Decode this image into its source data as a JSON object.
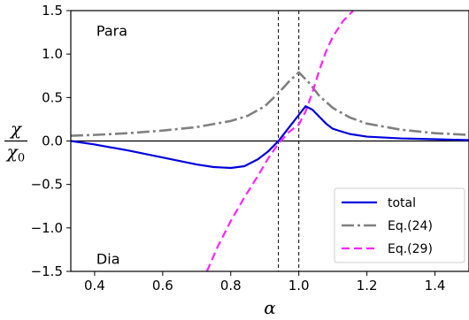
{
  "chart_data": {
    "type": "line",
    "title": "",
    "xlabel": "α",
    "ylabel": {
      "numerator": "χ",
      "denominator": "χ",
      "denominator_subscript": "0"
    },
    "xlim": [
      0.33,
      1.5
    ],
    "ylim": [
      -1.5,
      1.5
    ],
    "xticks": [
      0.4,
      0.6,
      0.8,
      1.0,
      1.2,
      1.4
    ],
    "xtick_labels": [
      "0.4",
      "0.6",
      "0.8",
      "1.0",
      "1.2",
      "1.4"
    ],
    "yticks": [
      -1.5,
      -1.0,
      -0.5,
      0.0,
      0.5,
      1.0,
      1.5
    ],
    "ytick_labels": [
      "−1.5",
      "−1.0",
      "−0.5",
      "0.0",
      "0.5",
      "1.0",
      "1.5"
    ],
    "grid": false,
    "legend_position": "bottom-right",
    "annotations": [
      {
        "text": "Para",
        "x": 0.4,
        "y": 1.27
      },
      {
        "text": "Dia",
        "x": 0.4,
        "y": -1.35
      }
    ],
    "hlines": [
      0.0
    ],
    "vlines": [
      0.94,
      1.0
    ],
    "series": [
      {
        "name": "total",
        "color": "#0000dd",
        "style": "solid",
        "x": [
          0.33,
          0.4,
          0.5,
          0.6,
          0.7,
          0.75,
          0.8,
          0.84,
          0.88,
          0.91,
          0.94,
          0.96,
          0.98,
          1.0,
          1.02,
          1.04,
          1.06,
          1.08,
          1.1,
          1.15,
          1.2,
          1.3,
          1.4,
          1.5
        ],
        "y": [
          0.0,
          -0.04,
          -0.11,
          -0.19,
          -0.27,
          -0.3,
          -0.31,
          -0.29,
          -0.21,
          -0.12,
          0.0,
          0.1,
          0.2,
          0.3,
          0.4,
          0.36,
          0.28,
          0.2,
          0.14,
          0.08,
          0.05,
          0.03,
          0.02,
          0.01
        ]
      },
      {
        "name": "Eq.(24)",
        "color": "#808080",
        "style": "dashdot",
        "x": [
          0.33,
          0.4,
          0.5,
          0.6,
          0.7,
          0.8,
          0.85,
          0.9,
          0.94,
          0.97,
          1.0,
          1.03,
          1.06,
          1.1,
          1.15,
          1.2,
          1.3,
          1.4,
          1.5
        ],
        "y": [
          0.06,
          0.07,
          0.09,
          0.12,
          0.16,
          0.23,
          0.29,
          0.4,
          0.55,
          0.68,
          0.79,
          0.67,
          0.52,
          0.38,
          0.27,
          0.2,
          0.13,
          0.09,
          0.07
        ]
      },
      {
        "name": "Eq.(29)",
        "color": "#ff22ff",
        "style": "dashed",
        "x": [
          0.73,
          0.76,
          0.8,
          0.84,
          0.88,
          0.91,
          0.94,
          0.97,
          1.0,
          1.02,
          1.04,
          1.06,
          1.08,
          1.1,
          1.13,
          1.16
        ],
        "y": [
          -1.5,
          -1.23,
          -0.92,
          -0.65,
          -0.4,
          -0.2,
          -0.03,
          0.1,
          0.19,
          0.34,
          0.56,
          0.81,
          1.03,
          1.2,
          1.38,
          1.5
        ]
      }
    ]
  }
}
